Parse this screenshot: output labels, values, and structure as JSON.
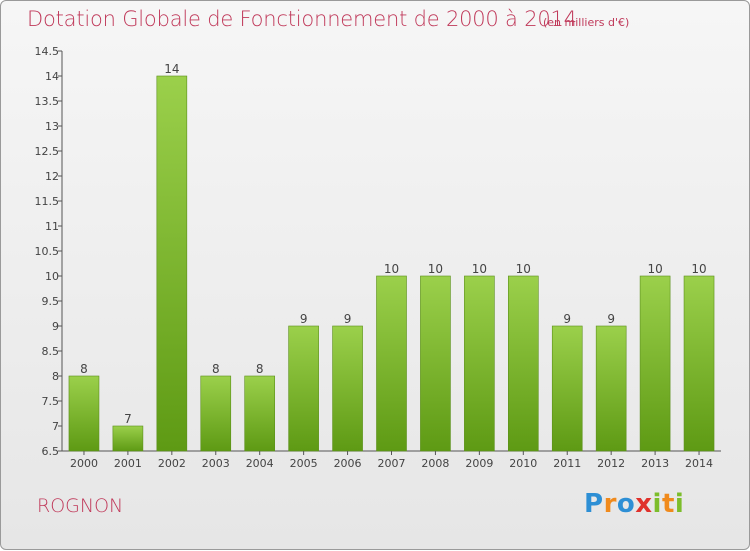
{
  "header": {
    "title": "Dotation Globale de Fonctionnement de 2000 à 2014",
    "unit": "(en milliers d'€)"
  },
  "footer": {
    "commune": "ROGNON",
    "logo": [
      "P",
      "r",
      "o",
      "x",
      "i",
      "t",
      "i"
    ]
  },
  "colors": {
    "title": "#c0395a",
    "bar_top": "#9bd04b",
    "bar_bottom": "#5e9a14",
    "bar_edge": "#5b8f1a"
  },
  "chart_data": {
    "type": "bar",
    "title": "Dotation Globale de Fonctionnement de 2000 à 2014",
    "xlabel": "",
    "ylabel": "",
    "categories": [
      "2000",
      "2001",
      "2002",
      "2003",
      "2004",
      "2005",
      "2006",
      "2007",
      "2008",
      "2009",
      "2010",
      "2011",
      "2012",
      "2013",
      "2014"
    ],
    "values": [
      8,
      7,
      14,
      8,
      8,
      9,
      9,
      10,
      10,
      10,
      10,
      9,
      9,
      10,
      10
    ],
    "value_labels": [
      "8",
      "7",
      "14",
      "8",
      "8",
      "9",
      "9",
      "10",
      "10",
      "10",
      "10",
      "9",
      "9",
      "10",
      "10"
    ],
    "ylim": [
      6.5,
      14.5
    ],
    "yticks": [
      "6.5",
      "7",
      "7.5",
      "8",
      "8.5",
      "9",
      "9.5",
      "10",
      "10.5",
      "11",
      "11.5",
      "12",
      "12.5",
      "13",
      "13.5",
      "14",
      "14.5"
    ],
    "grid": false,
    "legend": "none"
  }
}
